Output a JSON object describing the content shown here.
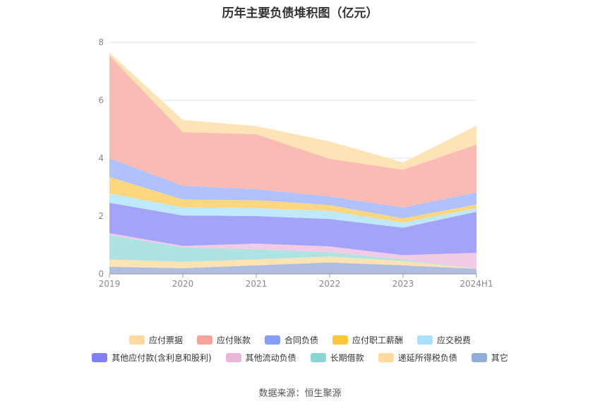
{
  "source_label": "数据来源：恒生聚源",
  "chart_data": {
    "type": "area",
    "stacked": true,
    "title": "历年主要负债堆积图（亿元）",
    "categories": [
      "2019",
      "2020",
      "2021",
      "2022",
      "2023",
      "2024H1"
    ],
    "ylim": [
      0,
      8
    ],
    "yticks": [
      0,
      2,
      4,
      6,
      8
    ],
    "grid": true,
    "legend_position": "bottom",
    "series": [
      {
        "name": "其它",
        "color": "#aebde0",
        "values": [
          0.25,
          0.2,
          0.3,
          0.4,
          0.3,
          0.18
        ]
      },
      {
        "name": "递延所得税负债",
        "color": "#fde2b2",
        "values": [
          0.25,
          0.22,
          0.2,
          0.2,
          0.15,
          0.0
        ]
      },
      {
        "name": "长期借款",
        "color": "#ade3e3",
        "values": [
          0.85,
          0.5,
          0.35,
          0.15,
          0.05,
          0.0
        ]
      },
      {
        "name": "其他流动负债",
        "color": "#f1cbe3",
        "values": [
          0.06,
          0.05,
          0.2,
          0.2,
          0.15,
          0.55
        ]
      },
      {
        "name": "其他应付款(含利息和股利)",
        "color": "#a3a3f9",
        "values": [
          1.05,
          1.05,
          0.95,
          0.95,
          0.95,
          1.42
        ]
      },
      {
        "name": "应交税费",
        "color": "#bde9fb",
        "values": [
          0.32,
          0.28,
          0.28,
          0.28,
          0.17,
          0.12
        ]
      },
      {
        "name": "应付职工薪酬",
        "color": "#fdd77f",
        "values": [
          0.57,
          0.27,
          0.27,
          0.2,
          0.15,
          0.13
        ]
      },
      {
        "name": "合同负债",
        "color": "#b0c1fc",
        "values": [
          0.65,
          0.48,
          0.38,
          0.3,
          0.38,
          0.42
        ]
      },
      {
        "name": "应付账款",
        "color": "#fbbbb5",
        "values": [
          3.55,
          1.85,
          1.9,
          1.3,
          1.3,
          1.65
        ]
      },
      {
        "name": "应付票据",
        "color": "#fee3b6",
        "values": [
          0.1,
          0.42,
          0.28,
          0.6,
          0.25,
          0.65
        ]
      }
    ]
  },
  "legend": {
    "row1": [
      {
        "name": "应付票据",
        "color": "#fdd9a0"
      },
      {
        "name": "应付账款",
        "color": "#f9a49a"
      },
      {
        "name": "合同负债",
        "color": "#859ff8"
      },
      {
        "name": "应付职工薪酬",
        "color": "#fbc53c"
      },
      {
        "name": "应交税费",
        "color": "#a9e0fa"
      }
    ],
    "row2": [
      {
        "name": "其他应付款(含利息和股利)",
        "color": "#8080f2"
      },
      {
        "name": "其他流动负债",
        "color": "#eab6d8"
      },
      {
        "name": "长期借款",
        "color": "#8ad4d4"
      },
      {
        "name": "递延所得税负债",
        "color": "#fdd9a0"
      },
      {
        "name": "其它",
        "color": "#93acd8"
      }
    ]
  }
}
